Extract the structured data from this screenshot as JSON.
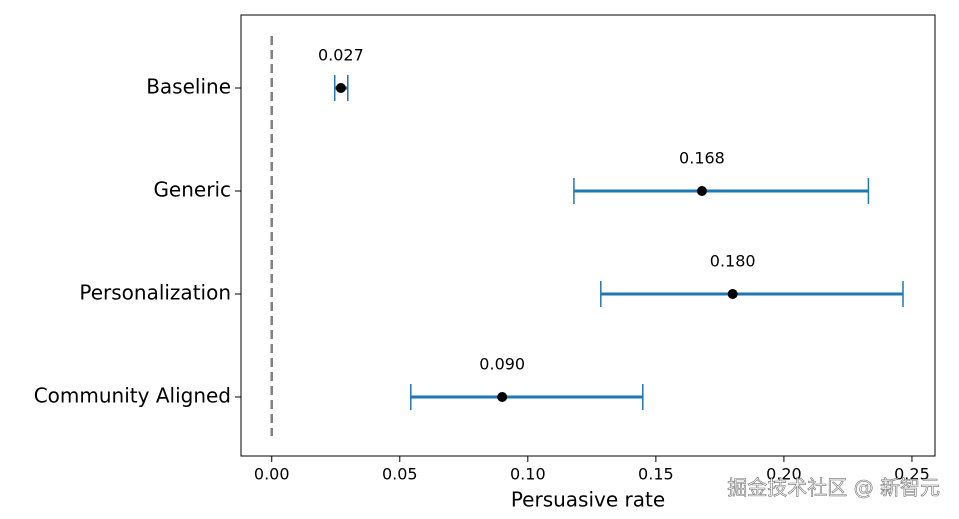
{
  "chart_data": {
    "type": "errorbar",
    "xlabel": "Persuasive rate",
    "categories": [
      "Baseline",
      "Generic",
      "Personalization",
      "Community Aligned"
    ],
    "values": [
      0.027,
      0.168,
      0.18,
      0.09
    ],
    "value_labels": [
      "0.027",
      "0.168",
      "0.180",
      "0.090"
    ],
    "lower": [
      0.0246,
      0.118,
      0.1285,
      0.0543
    ],
    "upper": [
      0.0297,
      0.233,
      0.2465,
      0.1449
    ],
    "color": "#1f77b4",
    "point_color": "#000000",
    "reference_line": 0,
    "reference_color": "#808080",
    "xlim": [
      -0.012,
      0.259
    ],
    "xticks": [
      {
        "value": 0,
        "label": "0.00"
      },
      {
        "value": 0.05,
        "label": "0.05"
      },
      {
        "value": 0.1,
        "label": "0.10"
      },
      {
        "value": 0.15,
        "label": "0.15"
      },
      {
        "value": 0.2,
        "label": "0.20"
      },
      {
        "value": 0.25,
        "label": "0.25"
      }
    ],
    "watermark": "掘金技术社区 @ 新智元"
  }
}
